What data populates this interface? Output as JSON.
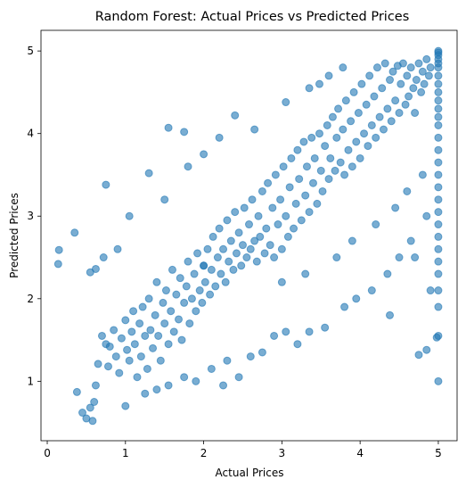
{
  "chart_data": {
    "type": "scatter",
    "title": "Random Forest: Actual Prices vs Predicted Prices",
    "xlabel": "Actual Prices",
    "ylabel": "Predicted Prices",
    "xlim": [
      -0.08,
      5.24
    ],
    "ylim": [
      0.28,
      5.25
    ],
    "xticks": [
      "0",
      "1",
      "2",
      "3",
      "4",
      "5"
    ],
    "yticks": [
      "1",
      "2",
      "3",
      "4",
      "5"
    ],
    "grid": false,
    "marker_color": "#1f77b4",
    "marker_alpha": 0.6,
    "series": [
      {
        "name": "",
        "points": [
          [
            0.15,
            2.59
          ],
          [
            0.14,
            2.42
          ],
          [
            0.38,
            0.87
          ],
          [
            0.45,
            0.62
          ],
          [
            0.5,
            0.55
          ],
          [
            0.55,
            0.68
          ],
          [
            0.58,
            0.52
          ],
          [
            0.6,
            0.75
          ],
          [
            0.62,
            0.95
          ],
          [
            0.65,
            1.21
          ],
          [
            0.7,
            1.55
          ],
          [
            0.75,
            1.45
          ],
          [
            0.78,
            1.18
          ],
          [
            0.8,
            1.42
          ],
          [
            0.85,
            1.62
          ],
          [
            0.88,
            1.3
          ],
          [
            0.92,
            1.1
          ],
          [
            0.95,
            1.52
          ],
          [
            1.0,
            1.74
          ],
          [
            1.02,
            1.38
          ],
          [
            1.05,
            1.25
          ],
          [
            1.08,
            1.6
          ],
          [
            1.1,
            1.85
          ],
          [
            1.12,
            1.45
          ],
          [
            1.15,
            1.05
          ],
          [
            1.18,
            1.7
          ],
          [
            1.2,
            1.3
          ],
          [
            1.22,
            1.9
          ],
          [
            1.25,
            1.55
          ],
          [
            1.28,
            1.15
          ],
          [
            1.3,
            2.0
          ],
          [
            1.32,
            1.62
          ],
          [
            1.35,
            1.4
          ],
          [
            1.38,
            1.8
          ],
          [
            1.4,
            2.2
          ],
          [
            1.42,
            1.55
          ],
          [
            1.45,
            1.25
          ],
          [
            1.48,
            1.95
          ],
          [
            1.5,
            1.7
          ],
          [
            1.52,
            2.1
          ],
          [
            1.55,
            1.45
          ],
          [
            1.58,
            1.85
          ],
          [
            1.6,
            2.35
          ],
          [
            1.62,
            1.6
          ],
          [
            1.65,
            2.05
          ],
          [
            1.68,
            1.75
          ],
          [
            1.7,
            2.25
          ],
          [
            1.72,
            1.5
          ],
          [
            1.75,
            1.95
          ],
          [
            1.78,
            2.15
          ],
          [
            1.8,
            2.45
          ],
          [
            1.82,
            1.7
          ],
          [
            1.85,
            2.0
          ],
          [
            1.88,
            2.3
          ],
          [
            1.9,
            1.85
          ],
          [
            1.92,
            2.55
          ],
          [
            1.95,
            2.1
          ],
          [
            1.98,
            1.95
          ],
          [
            2.0,
            2.4
          ],
          [
            2.02,
            2.2
          ],
          [
            2.05,
            2.6
          ],
          [
            2.08,
            2.05
          ],
          [
            2.1,
            2.35
          ],
          [
            2.12,
            2.75
          ],
          [
            2.15,
            2.15
          ],
          [
            2.18,
            2.5
          ],
          [
            2.2,
            2.85
          ],
          [
            2.22,
            2.3
          ],
          [
            2.25,
            2.6
          ],
          [
            2.28,
            2.2
          ],
          [
            2.3,
            2.95
          ],
          [
            2.32,
            2.45
          ],
          [
            2.35,
            2.7
          ],
          [
            2.38,
            2.35
          ],
          [
            2.4,
            3.05
          ],
          [
            2.42,
            2.55
          ],
          [
            2.45,
            2.8
          ],
          [
            2.48,
            2.4
          ],
          [
            2.5,
            2.65
          ],
          [
            2.52,
            3.1
          ],
          [
            2.55,
            2.5
          ],
          [
            2.58,
            2.9
          ],
          [
            2.6,
            2.6
          ],
          [
            2.62,
            3.2
          ],
          [
            2.65,
            2.7
          ],
          [
            2.68,
            2.45
          ],
          [
            2.7,
            3.0
          ],
          [
            2.72,
            2.75
          ],
          [
            2.75,
            3.3
          ],
          [
            2.78,
            2.55
          ],
          [
            2.8,
            2.85
          ],
          [
            2.82,
            3.4
          ],
          [
            2.85,
            2.65
          ],
          [
            2.88,
            3.1
          ],
          [
            2.9,
            2.5
          ],
          [
            2.92,
            3.5
          ],
          [
            2.95,
            2.9
          ],
          [
            2.98,
            3.2
          ],
          [
            3.0,
            2.6
          ],
          [
            3.02,
            3.6
          ],
          [
            3.05,
            3.0
          ],
          [
            3.08,
            2.75
          ],
          [
            3.1,
            3.35
          ],
          [
            3.12,
            3.7
          ],
          [
            3.15,
            2.85
          ],
          [
            3.18,
            3.15
          ],
          [
            3.2,
            3.8
          ],
          [
            3.22,
            3.45
          ],
          [
            3.25,
            2.95
          ],
          [
            3.28,
            3.9
          ],
          [
            3.3,
            3.25
          ],
          [
            3.32,
            3.6
          ],
          [
            3.35,
            3.05
          ],
          [
            3.38,
            3.95
          ],
          [
            3.4,
            3.4
          ],
          [
            3.42,
            3.7
          ],
          [
            3.45,
            3.15
          ],
          [
            3.48,
            4.0
          ],
          [
            3.5,
            3.55
          ],
          [
            3.52,
            3.3
          ],
          [
            3.55,
            3.85
          ],
          [
            3.58,
            4.1
          ],
          [
            3.6,
            3.45
          ],
          [
            3.62,
            3.7
          ],
          [
            3.65,
            4.2
          ],
          [
            3.68,
            3.55
          ],
          [
            3.7,
            3.95
          ],
          [
            3.72,
            4.3
          ],
          [
            3.75,
            3.65
          ],
          [
            3.78,
            4.05
          ],
          [
            3.8,
            3.5
          ],
          [
            3.82,
            4.4
          ],
          [
            3.85,
            3.8
          ],
          [
            3.88,
            4.15
          ],
          [
            3.9,
            3.6
          ],
          [
            3.92,
            4.5
          ],
          [
            3.95,
            3.9
          ],
          [
            3.98,
            4.25
          ],
          [
            4.0,
            3.7
          ],
          [
            4.02,
            4.6
          ],
          [
            4.05,
            4.0
          ],
          [
            4.08,
            4.35
          ],
          [
            4.1,
            3.85
          ],
          [
            4.12,
            4.7
          ],
          [
            4.15,
            4.1
          ],
          [
            4.18,
            4.45
          ],
          [
            4.2,
            3.95
          ],
          [
            4.22,
            4.8
          ],
          [
            4.25,
            4.2
          ],
          [
            4.28,
            4.55
          ],
          [
            4.3,
            4.05
          ],
          [
            4.32,
            4.85
          ],
          [
            4.35,
            4.3
          ],
          [
            4.38,
            4.65
          ],
          [
            4.4,
            4.15
          ],
          [
            4.42,
            4.75
          ],
          [
            4.45,
            4.4
          ],
          [
            4.48,
            4.82
          ],
          [
            4.5,
            4.25
          ],
          [
            4.52,
            4.6
          ],
          [
            4.55,
            4.85
          ],
          [
            4.58,
            4.35
          ],
          [
            4.6,
            4.7
          ],
          [
            4.62,
            4.45
          ],
          [
            4.65,
            4.8
          ],
          [
            4.68,
            4.55
          ],
          [
            4.7,
            4.25
          ],
          [
            4.72,
            4.65
          ],
          [
            4.75,
            4.85
          ],
          [
            4.78,
            4.5
          ],
          [
            4.8,
            4.75
          ],
          [
            4.82,
            4.6
          ],
          [
            4.85,
            4.9
          ],
          [
            4.88,
            4.7
          ],
          [
            4.9,
            4.8
          ],
          [
            0.35,
            2.8
          ],
          [
            0.55,
            2.32
          ],
          [
            0.62,
            2.36
          ],
          [
            0.72,
            2.5
          ],
          [
            0.75,
            3.38
          ],
          [
            0.9,
            2.6
          ],
          [
            1.05,
            3.0
          ],
          [
            1.3,
            3.52
          ],
          [
            1.55,
            4.07
          ],
          [
            1.75,
            4.02
          ],
          [
            1.5,
            3.2
          ],
          [
            1.8,
            3.6
          ],
          [
            2.0,
            3.75
          ],
          [
            2.2,
            3.95
          ],
          [
            2.4,
            4.22
          ],
          [
            2.65,
            4.05
          ],
          [
            3.05,
            4.38
          ],
          [
            3.35,
            4.55
          ],
          [
            3.6,
            4.7
          ],
          [
            3.78,
            4.8
          ],
          [
            3.48,
            4.6
          ],
          [
            1.0,
            0.7
          ],
          [
            1.25,
            0.85
          ],
          [
            1.4,
            0.9
          ],
          [
            1.55,
            0.95
          ],
          [
            1.75,
            1.05
          ],
          [
            1.9,
            1.0
          ],
          [
            2.1,
            1.15
          ],
          [
            2.25,
            0.95
          ],
          [
            2.3,
            1.25
          ],
          [
            2.45,
            1.05
          ],
          [
            2.6,
            1.3
          ],
          [
            2.75,
            1.35
          ],
          [
            2.9,
            1.55
          ],
          [
            3.05,
            1.6
          ],
          [
            3.2,
            1.45
          ],
          [
            3.35,
            1.6
          ],
          [
            3.55,
            1.65
          ],
          [
            3.8,
            1.9
          ],
          [
            3.95,
            2.0
          ],
          [
            4.15,
            2.1
          ],
          [
            4.35,
            2.3
          ],
          [
            4.38,
            1.8
          ],
          [
            4.5,
            2.5
          ],
          [
            4.65,
            2.7
          ],
          [
            4.75,
            1.32
          ],
          [
            4.85,
            1.38
          ],
          [
            4.9,
            2.1
          ],
          [
            4.98,
            1.53
          ],
          [
            2.0,
            2.4
          ],
          [
            3.0,
            2.2
          ],
          [
            3.3,
            2.3
          ],
          [
            3.7,
            2.5
          ],
          [
            3.9,
            2.7
          ],
          [
            4.2,
            2.9
          ],
          [
            4.45,
            3.1
          ],
          [
            4.6,
            3.3
          ],
          [
            4.8,
            3.5
          ],
          [
            4.85,
            3.0
          ],
          [
            4.7,
            2.5
          ],
          [
            5.0,
            1.0
          ],
          [
            5.0,
            1.55
          ],
          [
            5.0,
            1.9
          ],
          [
            5.0,
            2.1
          ],
          [
            5.0,
            2.3
          ],
          [
            5.0,
            2.45
          ],
          [
            5.0,
            2.6
          ],
          [
            5.0,
            2.75
          ],
          [
            5.0,
            2.9
          ],
          [
            5.0,
            3.05
          ],
          [
            5.0,
            3.2
          ],
          [
            5.0,
            3.35
          ],
          [
            5.0,
            3.5
          ],
          [
            5.0,
            3.65
          ],
          [
            5.0,
            3.8
          ],
          [
            5.0,
            3.95
          ],
          [
            5.0,
            4.1
          ],
          [
            5.0,
            4.2
          ],
          [
            5.0,
            4.3
          ],
          [
            5.0,
            4.4
          ],
          [
            5.0,
            4.5
          ],
          [
            5.0,
            4.6
          ],
          [
            5.0,
            4.7
          ],
          [
            5.0,
            4.8
          ],
          [
            5.0,
            4.85
          ],
          [
            5.0,
            4.9
          ],
          [
            5.0,
            4.95
          ],
          [
            5.0,
            4.98
          ],
          [
            5.0,
            5.0
          ]
        ]
      }
    ]
  }
}
